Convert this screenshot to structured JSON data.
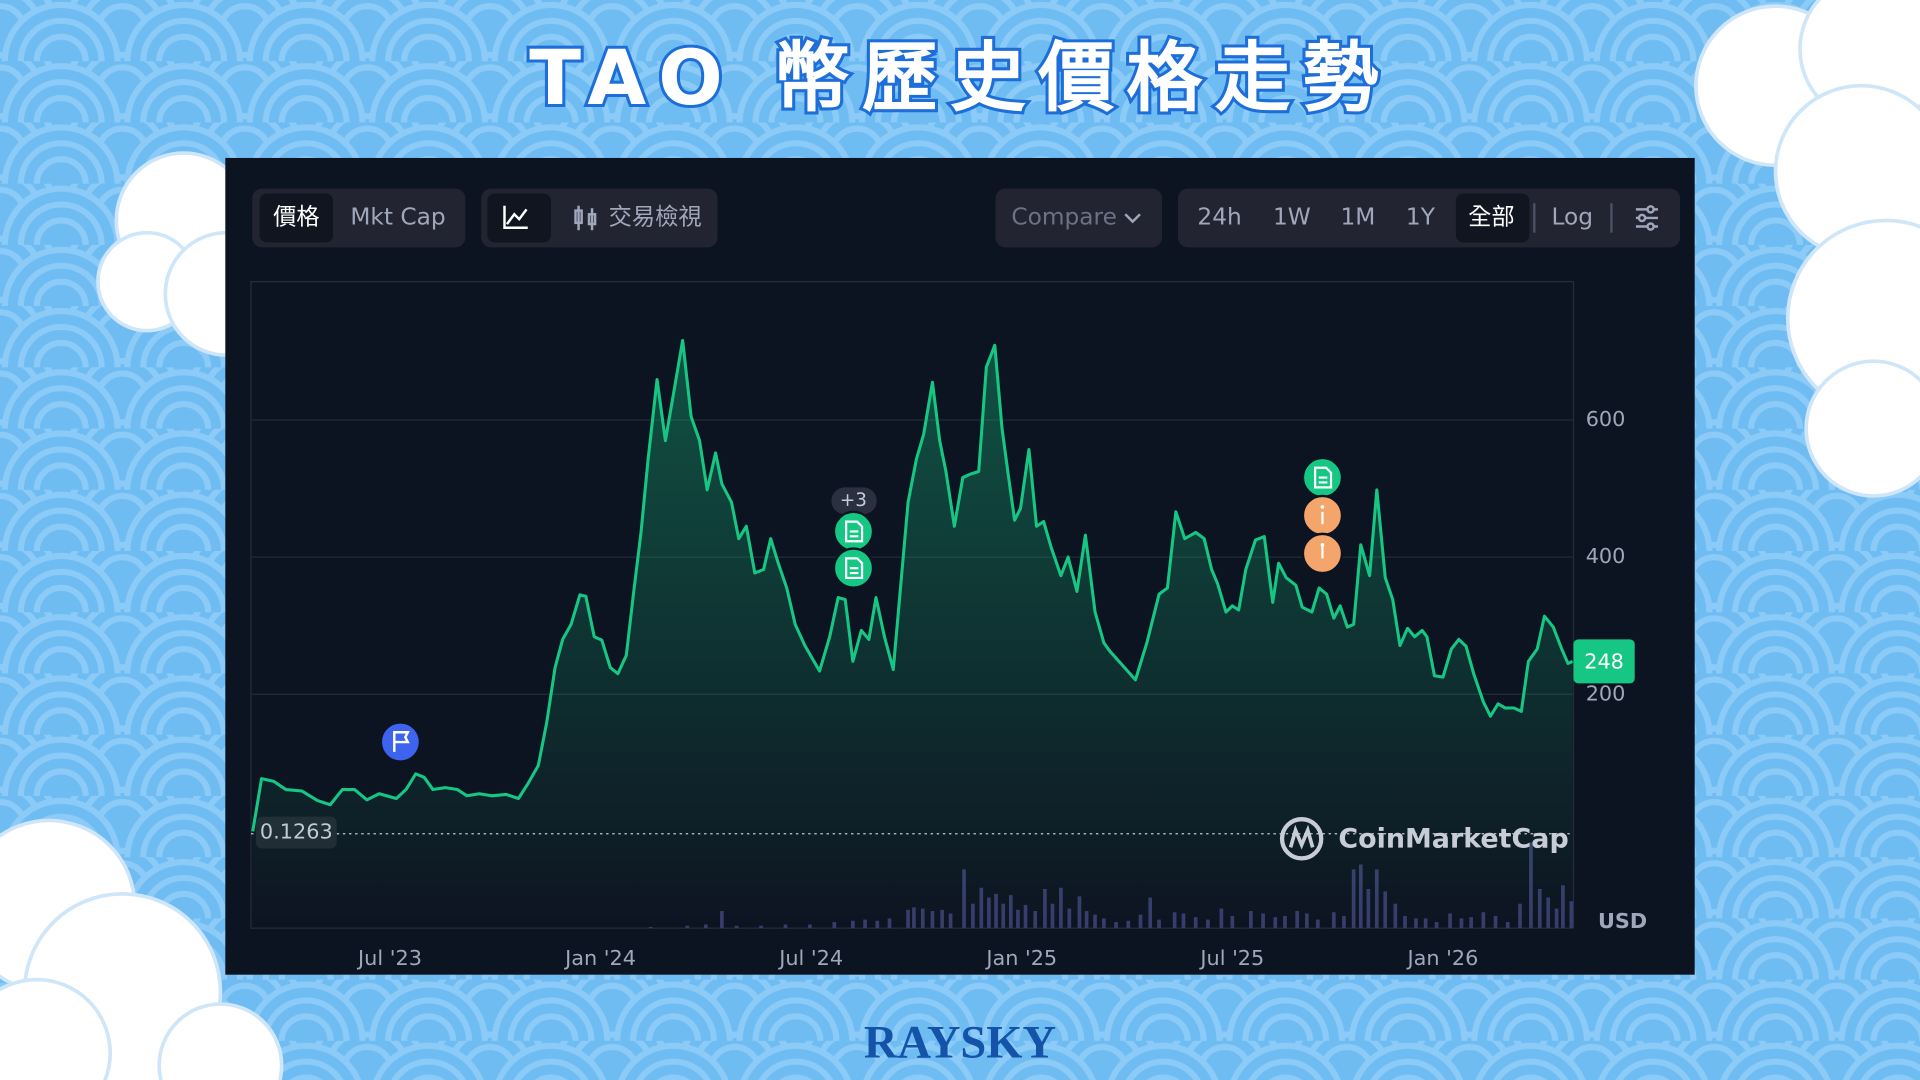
{
  "header": {
    "title": "TAO 幣歷史價格走勢"
  },
  "toolbar": {
    "view_tabs": [
      "價格",
      "Mkt Cap"
    ],
    "chart_view": "交易檢視",
    "compare": "Compare",
    "ranges": [
      "24h",
      "1W",
      "1M",
      "1Y",
      "全部"
    ],
    "scale": "Log"
  },
  "chart_data": {
    "type": "line",
    "color": "#16c784",
    "x": [
      2023.174,
      2023.195,
      2023.224,
      2023.253,
      2023.291,
      2023.328,
      2023.358,
      2023.387,
      2023.416,
      2023.445,
      2023.474,
      2023.515,
      2023.538,
      2023.561,
      2023.581,
      2023.602,
      2023.631,
      2023.66,
      2023.683,
      2023.712,
      2023.741,
      2023.776,
      2023.805,
      2023.828,
      2023.852,
      2023.872,
      2023.892,
      2023.91,
      2023.93,
      2023.951,
      2023.965,
      2023.985,
      2024.003,
      2024.023,
      2024.041,
      2024.061,
      2024.078,
      2024.096,
      2024.113,
      2024.134,
      2024.154,
      2024.174,
      2024.195,
      2024.215,
      2024.235,
      2024.253,
      2024.273,
      2024.288,
      2024.311,
      2024.328,
      2024.346,
      2024.366,
      2024.387,
      2024.404,
      2024.422,
      2024.442,
      2024.462,
      2024.485,
      2024.52,
      2024.544,
      2024.564,
      2024.581,
      2024.599,
      2024.619,
      2024.637,
      2024.654,
      2024.674,
      2024.695,
      2024.712,
      2024.73,
      2024.75,
      2024.767,
      2024.788,
      2024.805,
      2024.82,
      2024.84,
      2024.86,
      2024.878,
      2024.898,
      2024.916,
      2024.936,
      2024.953,
      2024.968,
      2024.983,
      2024.997,
      2025.017,
      2025.035,
      2025.052,
      2025.07,
      2025.093,
      2025.11,
      2025.131,
      2025.151,
      2025.174,
      2025.195,
      2025.209,
      2025.238,
      2025.27,
      2025.297,
      2025.326,
      2025.346,
      2025.366,
      2025.387,
      2025.413,
      2025.433,
      2025.451,
      2025.465,
      2025.485,
      2025.5,
      2025.515,
      2025.532,
      2025.555,
      2025.576,
      2025.596,
      2025.61,
      2025.628,
      2025.651,
      2025.666,
      2025.689,
      2025.706,
      2025.724,
      2025.741,
      2025.756,
      2025.773,
      2025.788,
      2025.805,
      2025.826,
      2025.843,
      2025.863,
      2025.881,
      2025.898,
      2025.916,
      2025.933,
      2025.951,
      2025.962,
      2025.98,
      2026.0,
      2026.02,
      2026.038,
      2026.055,
      2026.073,
      2026.096,
      2026.113,
      2026.131,
      2026.148,
      2026.169,
      2026.186,
      2026.203,
      2026.224,
      2026.241,
      2026.262,
      2026.282,
      2026.297,
      2026.308
    ],
    "values": [
      0,
      77,
      73,
      61,
      59,
      45,
      39,
      61,
      61,
      46,
      55,
      48,
      61,
      84,
      79,
      61,
      64,
      61,
      52,
      55,
      52,
      54,
      48,
      70,
      96,
      159,
      239,
      280,
      302,
      345,
      343,
      284,
      279,
      239,
      230,
      257,
      346,
      436,
      543,
      659,
      570,
      641,
      716,
      605,
      570,
      498,
      552,
      507,
      480,
      427,
      445,
      377,
      382,
      427,
      391,
      355,
      302,
      271,
      234,
      284,
      341,
      338,
      248,
      293,
      280,
      341,
      284,
      236,
      355,
      480,
      543,
      579,
      655,
      570,
      525,
      445,
      516,
      521,
      525,
      677,
      709,
      588,
      520,
      454,
      471,
      557,
      445,
      452,
      414,
      373,
      400,
      350,
      432,
      320,
      275,
      263,
      243,
      221,
      275,
      346,
      355,
      466,
      427,
      436,
      427,
      382,
      361,
      320,
      329,
      323,
      382,
      425,
      430,
      334,
      391,
      370,
      359,
      327,
      320,
      355,
      346,
      311,
      329,
      298,
      302,
      418,
      373,
      498,
      370,
      338,
      271,
      296,
      284,
      293,
      284,
      227,
      225,
      266,
      280,
      270,
      230,
      189,
      168,
      186,
      180,
      180,
      175,
      248,
      266,
      314,
      298,
      266,
      245,
      248
    ],
    "xlim": [
      2023.17,
      2026.31
    ],
    "xticks": [
      {
        "value": 2023.5,
        "label": "Jul '23"
      },
      {
        "value": 2024.0,
        "label": "Jan '24"
      },
      {
        "value": 2024.5,
        "label": "Jul '24"
      },
      {
        "value": 2025.0,
        "label": "Jan '25"
      },
      {
        "value": 2025.5,
        "label": "Jul '25"
      },
      {
        "value": 2026.0,
        "label": "Jan '26"
      }
    ],
    "ylim": [
      0,
      800
    ],
    "yticks": [
      200,
      400,
      600
    ],
    "grid": true,
    "reference_line": 0.1263,
    "unit": "USD",
    "event_count_label": "+3",
    "watermark": "CoinMarketCap",
    "volume": {
      "color": "#373d6b",
      "ylim": [
        0,
        80
      ],
      "x": [
        2024.119,
        2024.206,
        2024.25,
        2024.288,
        2024.323,
        2024.381,
        2024.439,
        2024.497,
        2024.555,
        2024.599,
        2024.628,
        2024.657,
        2024.686,
        2024.73,
        2024.744,
        2024.765,
        2024.788,
        2024.811,
        2024.831,
        2024.863,
        2024.884,
        2024.904,
        2024.922,
        2024.939,
        2024.956,
        2024.974,
        2024.991,
        2025.009,
        2025.032,
        2025.055,
        2025.073,
        2025.093,
        2025.113,
        2025.137,
        2025.154,
        2025.174,
        2025.195,
        2025.224,
        2025.253,
        2025.282,
        2025.305,
        2025.326,
        2025.363,
        2025.384,
        2025.413,
        2025.442,
        2025.474,
        2025.5,
        2025.544,
        2025.573,
        2025.602,
        2025.625,
        2025.654,
        2025.677,
        2025.703,
        2025.741,
        2025.765,
        2025.788,
        2025.805,
        2025.823,
        2025.843,
        2025.863,
        2025.887,
        2025.91,
        2025.936,
        2025.959,
        2025.985,
        2026.017,
        2026.044,
        2026.067,
        2026.096,
        2026.125,
        2026.154,
        2026.183,
        2026.209,
        2026.23,
        2026.25,
        2026.27,
        2026.285,
        2026.305
      ],
      "values": [
        1,
        2,
        3,
        14,
        2,
        2,
        3,
        3,
        5,
        6,
        7,
        6,
        8,
        15,
        17,
        16,
        14,
        15,
        12,
        48,
        20,
        33,
        25,
        28,
        20,
        27,
        15,
        19,
        14,
        32,
        20,
        33,
        16,
        26,
        14,
        11,
        8,
        5,
        6,
        11,
        25,
        7,
        13,
        12,
        9,
        7,
        16,
        10,
        14,
        12,
        9,
        10,
        14,
        12,
        7,
        13,
        10,
        48,
        52,
        32,
        48,
        30,
        20,
        10,
        8,
        8,
        5,
        12,
        8,
        9,
        13,
        10,
        5,
        20,
        70,
        32,
        25,
        16,
        35,
        22
      ]
    }
  },
  "footer": {
    "brand": "RAYSKY"
  }
}
